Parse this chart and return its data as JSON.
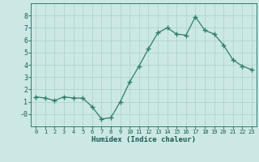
{
  "x": [
    0,
    1,
    2,
    3,
    4,
    5,
    6,
    7,
    8,
    9,
    10,
    11,
    12,
    13,
    14,
    15,
    16,
    17,
    18,
    19,
    20,
    21,
    22,
    23
  ],
  "y": [
    1.4,
    1.3,
    1.1,
    1.4,
    1.3,
    1.3,
    0.6,
    -0.4,
    -0.3,
    1.0,
    2.6,
    3.9,
    5.3,
    6.6,
    7.0,
    6.5,
    6.4,
    7.9,
    6.8,
    6.5,
    5.6,
    4.4,
    3.9,
    3.6
  ],
  "line_color": "#2e7d6e",
  "marker_color": "#2e7d6e",
  "bg_color": "#cce8e4",
  "grid_color": "#b0d4ce",
  "xlabel": "Humidex (Indice chaleur)",
  "xlabel_color": "#1a5a52",
  "xlim": [
    -0.5,
    23.5
  ],
  "ylim": [
    -1.0,
    9.0
  ],
  "yticks": [
    0,
    1,
    2,
    3,
    4,
    5,
    6,
    7,
    8
  ],
  "ytick_labels": [
    "-0",
    "1",
    "2",
    "3",
    "4",
    "5",
    "6",
    "7",
    "8"
  ],
  "xticks": [
    0,
    1,
    2,
    3,
    4,
    5,
    6,
    7,
    8,
    9,
    10,
    11,
    12,
    13,
    14,
    15,
    16,
    17,
    18,
    19,
    20,
    21,
    22,
    23
  ],
  "xtick_labels": [
    "0",
    "1",
    "2",
    "3",
    "4",
    "5",
    "6",
    "7",
    "8",
    "9",
    "10",
    "11",
    "12",
    "13",
    "14",
    "15",
    "16",
    "17",
    "18",
    "19",
    "20",
    "21",
    "22",
    "23"
  ],
  "tick_color": "#1a5a52",
  "axis_color": "#2e7d6e"
}
